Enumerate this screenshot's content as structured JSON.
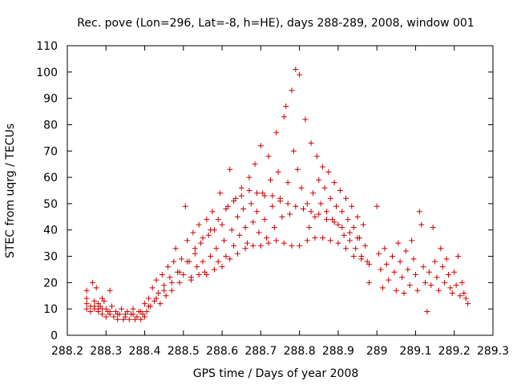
{
  "chart_data": {
    "type": "scatter",
    "title": "Rec. pove (Lon=296, Lat=-8, h=HE), days 288-289, 2008, window 001",
    "xlabel": "GPS time / Days of year 2008",
    "ylabel": "STEC from uqrg / TECUs",
    "xlim": [
      288.2,
      289.3
    ],
    "ylim": [
      0,
      110
    ],
    "xticks": [
      "288.2",
      "288.3",
      "288.4",
      "288.5",
      "288.6",
      "288.7",
      "288.8",
      "288.9",
      "289",
      "289.1",
      "289.2",
      "289.3"
    ],
    "yticks": [
      "0",
      "10",
      "20",
      "30",
      "40",
      "50",
      "60",
      "70",
      "80",
      "90",
      "100",
      "110"
    ],
    "grid": false,
    "marker": "plus",
    "color": "#cc0000",
    "series": [
      {
        "name": "STEC",
        "points": [
          [
            288.25,
            17
          ],
          [
            288.25,
            14
          ],
          [
            288.25,
            12
          ],
          [
            288.25,
            10
          ],
          [
            288.26,
            11
          ],
          [
            288.26,
            9
          ],
          [
            288.265,
            20
          ],
          [
            288.27,
            13
          ],
          [
            288.27,
            10
          ],
          [
            288.275,
            18
          ],
          [
            288.28,
            12
          ],
          [
            288.28,
            9
          ],
          [
            288.285,
            11
          ],
          [
            288.29,
            14
          ],
          [
            288.29,
            8
          ],
          [
            288.295,
            13
          ],
          [
            288.3,
            10
          ],
          [
            288.3,
            7
          ],
          [
            288.305,
            9
          ],
          [
            288.31,
            17
          ],
          [
            288.31,
            8
          ],
          [
            288.315,
            11
          ],
          [
            288.32,
            7
          ],
          [
            288.325,
            9
          ],
          [
            288.33,
            6
          ],
          [
            288.335,
            8
          ],
          [
            288.34,
            10
          ],
          [
            288.345,
            6
          ],
          [
            288.35,
            7
          ],
          [
            288.355,
            9
          ],
          [
            288.36,
            6
          ],
          [
            288.365,
            8
          ],
          [
            288.37,
            10
          ],
          [
            288.375,
            6
          ],
          [
            288.38,
            7
          ],
          [
            288.385,
            9
          ],
          [
            288.39,
            6
          ],
          [
            288.395,
            8
          ],
          [
            288.4,
            7
          ],
          [
            288.4,
            12
          ],
          [
            288.405,
            9
          ],
          [
            288.41,
            14
          ],
          [
            288.415,
            11
          ],
          [
            288.42,
            18
          ],
          [
            288.425,
            13
          ],
          [
            288.43,
            21
          ],
          [
            288.435,
            16
          ],
          [
            288.44,
            12
          ],
          [
            288.445,
            23
          ],
          [
            288.45,
            19
          ],
          [
            288.455,
            15
          ],
          [
            288.46,
            26
          ],
          [
            288.465,
            22
          ],
          [
            288.47,
            17
          ],
          [
            288.475,
            28
          ],
          [
            288.48,
            33
          ],
          [
            288.485,
            24
          ],
          [
            288.49,
            20
          ],
          [
            288.495,
            29
          ],
          [
            288.5,
            23
          ],
          [
            288.505,
            49
          ],
          [
            288.51,
            36
          ],
          [
            288.515,
            28
          ],
          [
            288.52,
            22
          ],
          [
            288.525,
            39
          ],
          [
            288.53,
            31
          ],
          [
            288.535,
            26
          ],
          [
            288.54,
            42
          ],
          [
            288.545,
            35
          ],
          [
            288.55,
            28
          ],
          [
            288.555,
            24
          ],
          [
            288.56,
            44
          ],
          [
            288.565,
            38
          ],
          [
            288.57,
            30
          ],
          [
            288.575,
            47
          ],
          [
            288.58,
            40
          ],
          [
            288.585,
            33
          ],
          [
            288.59,
            28
          ],
          [
            288.595,
            54
          ],
          [
            288.6,
            42
          ],
          [
            288.605,
            36
          ],
          [
            288.61,
            30
          ],
          [
            288.615,
            49
          ],
          [
            288.62,
            63
          ],
          [
            288.625,
            40
          ],
          [
            288.63,
            34
          ],
          [
            288.635,
            52
          ],
          [
            288.64,
            45
          ],
          [
            288.645,
            38
          ],
          [
            288.65,
            56
          ],
          [
            288.655,
            48
          ],
          [
            288.66,
            41
          ],
          [
            288.665,
            35
          ],
          [
            288.67,
            60
          ],
          [
            288.675,
            50
          ],
          [
            288.68,
            43
          ],
          [
            288.685,
            65
          ],
          [
            288.69,
            47
          ],
          [
            288.695,
            39
          ],
          [
            288.7,
            72
          ],
          [
            288.705,
            54
          ],
          [
            288.71,
            44
          ],
          [
            288.715,
            37
          ],
          [
            288.72,
            68
          ],
          [
            288.725,
            59
          ],
          [
            288.73,
            49
          ],
          [
            288.735,
            41
          ],
          [
            288.74,
            77
          ],
          [
            288.745,
            62
          ],
          [
            288.75,
            52
          ],
          [
            288.755,
            45
          ],
          [
            288.76,
            83
          ],
          [
            288.765,
            87
          ],
          [
            288.77,
            58
          ],
          [
            288.775,
            46
          ],
          [
            288.78,
            93
          ],
          [
            288.785,
            70
          ],
          [
            288.79,
            101
          ],
          [
            288.795,
            63
          ],
          [
            288.8,
            99
          ],
          [
            288.805,
            56
          ],
          [
            288.81,
            48
          ],
          [
            288.815,
            82
          ],
          [
            288.82,
            50
          ],
          [
            288.825,
            41
          ],
          [
            288.83,
            73
          ],
          [
            288.835,
            54
          ],
          [
            288.84,
            45
          ],
          [
            288.845,
            68
          ],
          [
            288.85,
            59
          ],
          [
            288.855,
            50
          ],
          [
            288.86,
            64
          ],
          [
            288.865,
            56
          ],
          [
            288.87,
            47
          ],
          [
            288.875,
            62
          ],
          [
            288.88,
            52
          ],
          [
            288.885,
            44
          ],
          [
            288.89,
            58
          ],
          [
            288.895,
            49
          ],
          [
            288.9,
            42
          ],
          [
            288.905,
            55
          ],
          [
            288.91,
            47
          ],
          [
            288.915,
            38
          ],
          [
            288.92,
            52
          ],
          [
            288.925,
            44
          ],
          [
            288.93,
            36
          ],
          [
            288.935,
            49
          ],
          [
            288.94,
            41
          ],
          [
            288.945,
            33
          ],
          [
            288.95,
            45
          ],
          [
            288.955,
            37
          ],
          [
            288.96,
            30
          ],
          [
            288.965,
            42
          ],
          [
            288.97,
            34
          ],
          [
            288.975,
            28
          ],
          [
            288.98,
            20
          ],
          [
            289,
            49
          ],
          [
            289.005,
            31
          ],
          [
            289.01,
            25
          ],
          [
            289.015,
            18
          ],
          [
            289.02,
            33
          ],
          [
            289.025,
            27
          ],
          [
            289.03,
            21
          ],
          [
            289.04,
            30
          ],
          [
            289.045,
            24
          ],
          [
            289.05,
            17
          ],
          [
            289.055,
            35
          ],
          [
            289.06,
            28
          ],
          [
            289.065,
            22
          ],
          [
            289.07,
            16
          ],
          [
            289.075,
            32
          ],
          [
            289.08,
            25
          ],
          [
            289.085,
            19
          ],
          [
            289.09,
            36
          ],
          [
            289.095,
            29
          ],
          [
            289.1,
            23
          ],
          [
            289.105,
            17
          ],
          [
            289.11,
            47
          ],
          [
            289.115,
            42
          ],
          [
            289.12,
            26
          ],
          [
            289.125,
            20
          ],
          [
            289.13,
            9
          ],
          [
            289.135,
            24
          ],
          [
            289.14,
            19
          ],
          [
            289.145,
            41
          ],
          [
            289.15,
            28
          ],
          [
            289.155,
            22
          ],
          [
            289.16,
            17
          ],
          [
            289.165,
            33
          ],
          [
            289.17,
            26
          ],
          [
            289.175,
            20
          ],
          [
            289.18,
            29
          ],
          [
            289.185,
            23
          ],
          [
            289.19,
            18
          ],
          [
            289.195,
            16
          ],
          [
            289.2,
            24
          ],
          [
            289.205,
            19
          ],
          [
            289.21,
            30
          ],
          [
            289.215,
            15
          ],
          [
            289.22,
            20
          ],
          [
            289.225,
            16
          ],
          [
            289.23,
            14
          ],
          [
            289.235,
            12
          ],
          [
            288.27,
            11
          ],
          [
            288.28,
            10
          ],
          [
            288.29,
            10
          ],
          [
            288.31,
            9
          ],
          [
            288.33,
            8
          ],
          [
            288.35,
            8
          ],
          [
            288.37,
            8
          ],
          [
            288.39,
            9
          ],
          [
            288.41,
            11
          ],
          [
            288.43,
            14
          ],
          [
            288.45,
            17
          ],
          [
            288.47,
            20
          ],
          [
            288.49,
            24
          ],
          [
            288.51,
            28
          ],
          [
            288.53,
            33
          ],
          [
            288.55,
            37
          ],
          [
            288.57,
            40
          ],
          [
            288.59,
            44
          ],
          [
            288.61,
            48
          ],
          [
            288.63,
            51
          ],
          [
            288.65,
            53
          ],
          [
            288.67,
            55
          ],
          [
            288.69,
            54
          ],
          [
            288.71,
            53
          ],
          [
            288.73,
            53
          ],
          [
            288.75,
            51
          ],
          [
            288.77,
            50
          ],
          [
            288.79,
            49
          ],
          [
            288.81,
            48
          ],
          [
            288.83,
            47
          ],
          [
            288.85,
            46
          ],
          [
            288.87,
            44
          ],
          [
            288.89,
            43
          ],
          [
            288.91,
            41
          ],
          [
            288.93,
            39
          ],
          [
            288.95,
            37
          ],
          [
            288.52,
            21
          ],
          [
            288.54,
            23
          ],
          [
            288.56,
            23
          ],
          [
            288.58,
            25
          ],
          [
            288.6,
            26
          ],
          [
            288.62,
            29
          ],
          [
            288.64,
            31
          ],
          [
            288.66,
            33
          ],
          [
            288.68,
            34
          ],
          [
            288.7,
            34
          ],
          [
            288.72,
            35
          ],
          [
            288.74,
            36
          ],
          [
            288.76,
            35
          ],
          [
            288.78,
            34
          ],
          [
            288.8,
            34
          ],
          [
            288.82,
            36
          ],
          [
            288.84,
            37
          ],
          [
            288.86,
            37
          ],
          [
            288.88,
            36
          ],
          [
            288.9,
            35
          ],
          [
            288.92,
            33
          ],
          [
            288.94,
            30
          ],
          [
            288.96,
            29
          ],
          [
            288.98,
            27
          ]
        ]
      }
    ]
  }
}
